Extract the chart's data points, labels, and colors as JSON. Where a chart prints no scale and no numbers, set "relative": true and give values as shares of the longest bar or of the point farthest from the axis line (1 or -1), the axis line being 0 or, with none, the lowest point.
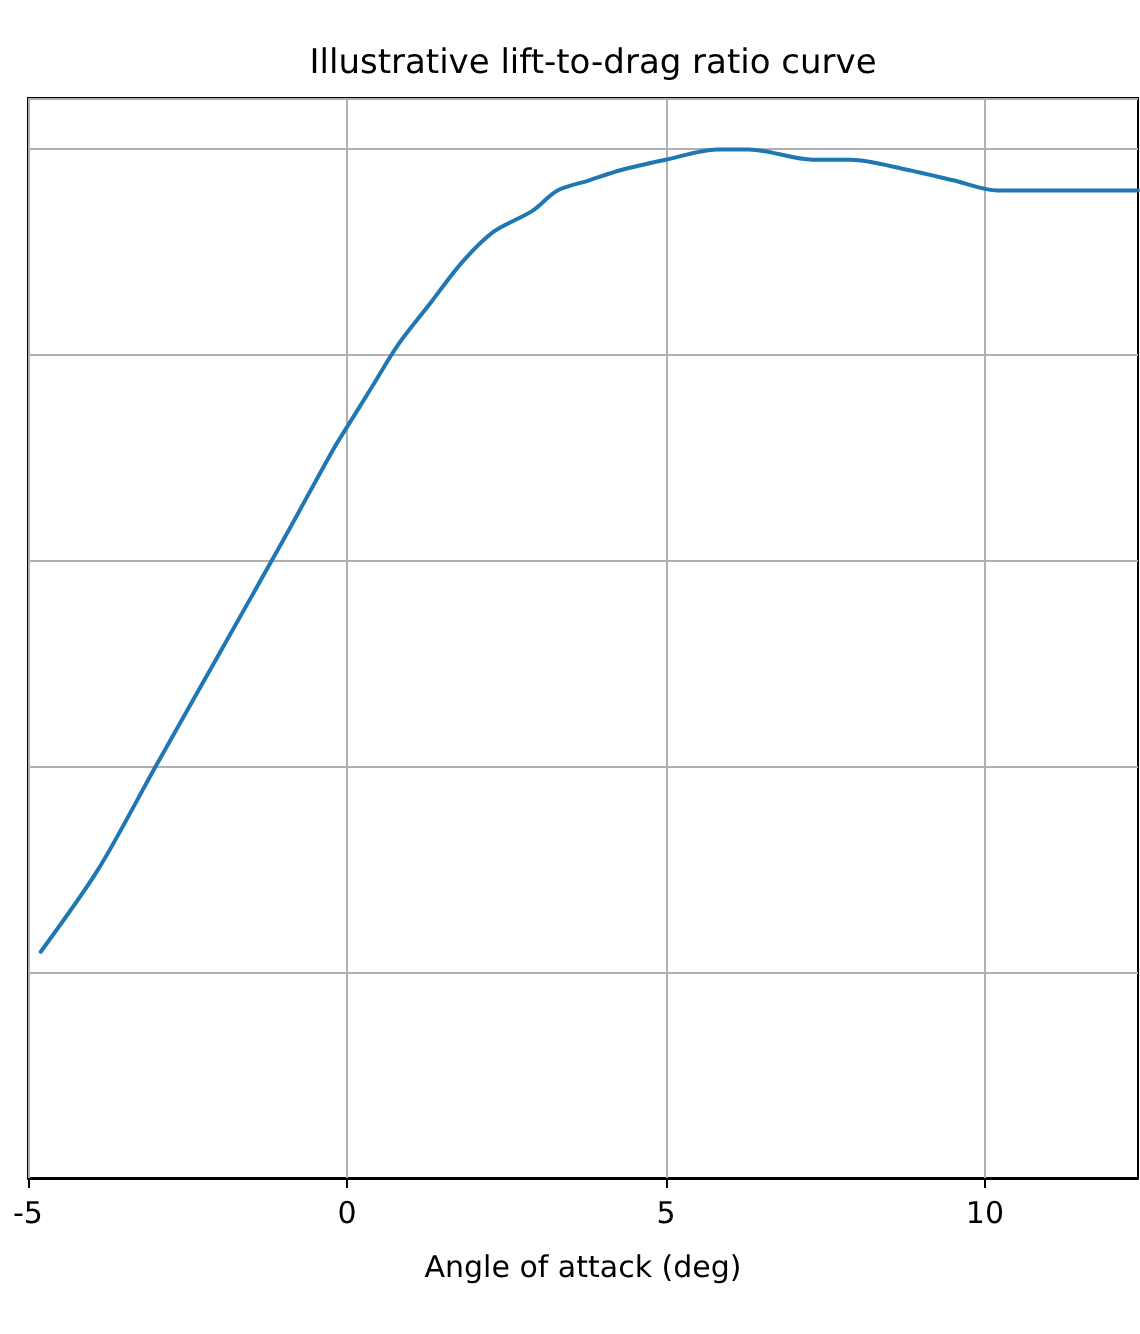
{
  "chart_data": {
    "type": "line",
    "title": "Illustrative lift-to-drag ratio curve",
    "xlabel": "Angle of attack (deg)",
    "x": [
      -4.8,
      -3.9,
      -3.0,
      -2.0,
      -1.0,
      -0.2,
      0,
      0.4,
      0.8,
      1.3,
      1.8,
      2.3,
      2.9,
      3.3,
      3.8,
      4.3,
      5.0,
      5.8,
      6.3,
      7.3,
      7.9,
      8.8,
      9.5,
      10.2,
      12.4
    ],
    "values": [
      0.22,
      0.3,
      0.4,
      0.51,
      0.62,
      0.71,
      0.73,
      0.77,
      0.81,
      0.85,
      0.89,
      0.92,
      0.94,
      0.96,
      0.97,
      0.98,
      0.99,
      1.0,
      1.0,
      0.99,
      0.99,
      0.98,
      0.97,
      0.96,
      0.96
    ],
    "color": "#1f77b4",
    "relative": true,
    "xlim": [
      -5,
      12.4
    ],
    "xticks": [
      -5,
      0,
      5,
      10
    ],
    "grid": true,
    "marker": "none",
    "line_style": "solid"
  }
}
